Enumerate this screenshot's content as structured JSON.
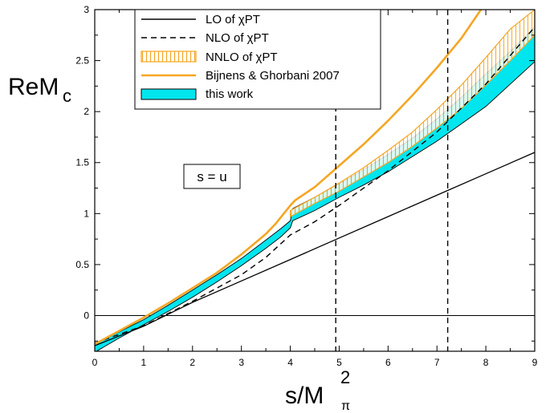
{
  "chart_data": {
    "type": "line",
    "xlabel": {
      "main": "s/M",
      "sub": "π",
      "sup": "2"
    },
    "ylabel": {
      "main": "ReM",
      "sub": "c"
    },
    "xlim": [
      0,
      9
    ],
    "ylim": [
      -0.35,
      3
    ],
    "xticks": [
      "0",
      "1",
      "2",
      "3",
      "4",
      "5",
      "6",
      "7",
      "8",
      "9"
    ],
    "yticks": [
      "0",
      "0.5",
      "1",
      "1.5",
      "2",
      "2.5",
      "3"
    ],
    "annotation": "s = u",
    "vlines": [
      4.93,
      7.22
    ],
    "hline": 0,
    "legend_position": "top-left",
    "colors": {
      "orange": "#f5a623",
      "cyan": "#00e5ee",
      "black": "#000000"
    },
    "series": [
      {
        "name": "LO of χPT",
        "style": "solid-black",
        "x": [
          0,
          1,
          2,
          3,
          4,
          5,
          6,
          7,
          8,
          9
        ],
        "y": [
          -0.295,
          -0.105,
          0.13,
          0.34,
          0.55,
          0.76,
          0.97,
          1.18,
          1.39,
          1.6
        ]
      },
      {
        "name": "NLO of χPT",
        "style": "dashed-black",
        "x": [
          0,
          1,
          2,
          3,
          3.5,
          4,
          4.5,
          5,
          6,
          7,
          8,
          9
        ],
        "y": [
          -0.27,
          -0.1,
          0.14,
          0.4,
          0.57,
          0.79,
          0.92,
          1.08,
          1.42,
          1.8,
          2.27,
          2.83
        ]
      },
      {
        "name": "NNLO of χPT",
        "style": "hatched-orange-band",
        "x": [
          4,
          4.5,
          5,
          5.5,
          6,
          6.5,
          7,
          7.5,
          8,
          8.5,
          9
        ],
        "lower": [
          0.97,
          1.1,
          1.22,
          1.36,
          1.5,
          1.66,
          1.84,
          2.03,
          2.26,
          2.5,
          2.75
        ],
        "upper": [
          1.03,
          1.16,
          1.3,
          1.45,
          1.62,
          1.8,
          2.02,
          2.26,
          2.53,
          2.81,
          3.0
        ]
      },
      {
        "name": "Bijnens & Ghorbani 2007",
        "style": "solid-orange",
        "x": [
          0,
          0.5,
          1,
          1.5,
          2,
          2.5,
          3,
          3.5,
          3.7,
          4,
          4.1,
          4.5,
          5,
          5.5,
          6,
          6.5,
          7,
          7.5,
          7.9
        ],
        "y": [
          -0.28,
          -0.15,
          -0.02,
          0.12,
          0.27,
          0.42,
          0.6,
          0.8,
          0.9,
          1.08,
          1.13,
          1.26,
          1.47,
          1.68,
          1.91,
          2.16,
          2.43,
          2.72,
          3.0
        ]
      },
      {
        "name": "this work",
        "style": "cyan-band",
        "x": [
          0,
          0.5,
          1,
          1.5,
          2,
          2.5,
          3,
          3.5,
          3.8,
          4.0,
          4.05,
          4.5,
          5,
          5.5,
          6,
          6.5,
          7,
          7.5,
          8,
          8.5,
          9
        ],
        "lower": [
          -0.36,
          -0.22,
          -0.09,
          0.04,
          0.18,
          0.33,
          0.49,
          0.66,
          0.77,
          0.86,
          0.93,
          1.03,
          1.16,
          1.28,
          1.41,
          1.56,
          1.71,
          1.88,
          2.05,
          2.27,
          2.49
        ],
        "upper": [
          -0.28,
          -0.16,
          -0.04,
          0.1,
          0.25,
          0.4,
          0.56,
          0.74,
          0.85,
          0.93,
          1.05,
          1.16,
          1.29,
          1.43,
          1.58,
          1.74,
          1.93,
          2.14,
          2.37,
          2.59,
          2.83
        ]
      }
    ]
  }
}
